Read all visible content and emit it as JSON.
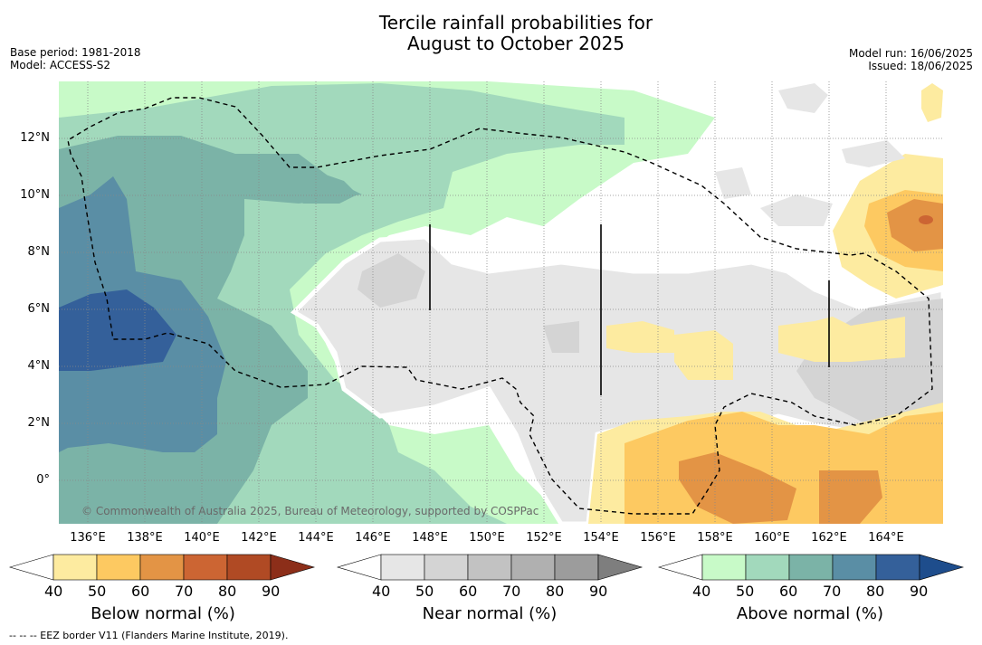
{
  "title_line1": "Tercile rainfall probabilities for",
  "title_line2": "August to October 2025",
  "base_period": "Base period: 1981-2018",
  "model": "Model: ACCESS-S2",
  "model_run": "Model run: 16/06/2025",
  "issued": "Issued: 18/06/2025",
  "lat_labels": [
    "12°N",
    "10°N",
    "8°N",
    "6°N",
    "4°N",
    "2°N",
    "0°"
  ],
  "lon_labels": [
    "136°E",
    "138°E",
    "140°E",
    "142°E",
    "144°E",
    "146°E",
    "148°E",
    "150°E",
    "152°E",
    "154°E",
    "156°E",
    "158°E",
    "160°E",
    "162°E",
    "164°E"
  ],
  "copyright": "© Commonwealth of Australia 2025, Bureau of Meteorology, supported by COSPPac",
  "colorbars": [
    {
      "title": "Below normal (%)",
      "ticks": [
        "40",
        "50",
        "60",
        "70",
        "80",
        "90"
      ],
      "colors": [
        "#ffffff",
        "#fdeba0",
        "#fdc961",
        "#e39445",
        "#cc6533",
        "#b04a24",
        "#8c2e19"
      ]
    },
    {
      "title": "Near normal (%)",
      "ticks": [
        "40",
        "50",
        "60",
        "70",
        "80",
        "90"
      ],
      "colors": [
        "#ffffff",
        "#e6e6e6",
        "#d4d4d4",
        "#c2c2c2",
        "#b0b0b0",
        "#9c9c9c",
        "#7e7e7e"
      ]
    },
    {
      "title": "Above normal (%)",
      "ticks": [
        "40",
        "50",
        "60",
        "70",
        "80",
        "90"
      ],
      "colors": [
        "#ffffff",
        "#c8fac8",
        "#a2d9bc",
        "#7bb3a7",
        "#5a8ea5",
        "#34609a",
        "#1e4d8c"
      ]
    }
  ],
  "footnote": "--  --  -- EEZ border V11 (Flanders Marine Institute, 2019)."
}
